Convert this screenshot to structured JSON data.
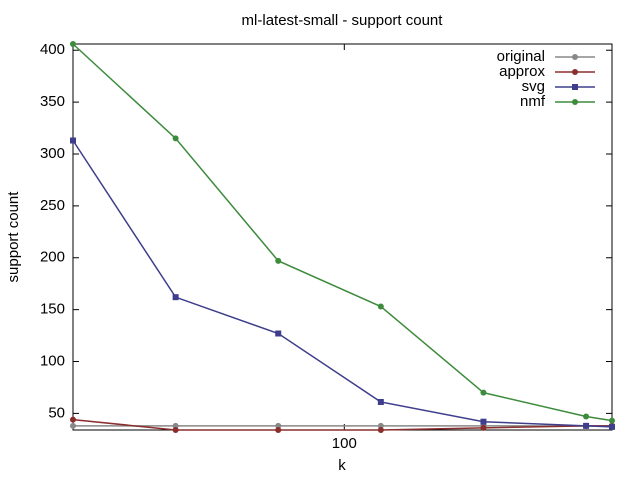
{
  "chart_data": {
    "type": "line",
    "title": "ml-latest-small - support count",
    "xlabel": "k",
    "ylabel": "support count",
    "x": [
      16,
      32,
      64,
      128,
      256,
      512,
      610
    ],
    "xscale": "log",
    "xlim": [
      16,
      610
    ],
    "xticks": [
      100
    ],
    "ylim": [
      34,
      406
    ],
    "yticks": [
      50,
      100,
      150,
      200,
      250,
      300,
      350,
      400
    ],
    "legend": "top-right",
    "series": [
      {
        "name": "original",
        "color": "#888888",
        "marker": "circle",
        "values": [
          38,
          38,
          38,
          38,
          38,
          38,
          38
        ]
      },
      {
        "name": "approx",
        "color": "#8b2e2e",
        "marker": "circle",
        "values": [
          44,
          34,
          34,
          34,
          36,
          38,
          38
        ]
      },
      {
        "name": "svg",
        "color": "#3e3e8c",
        "marker": "square",
        "values": [
          313,
          162,
          127,
          61,
          42,
          38,
          37
        ]
      },
      {
        "name": "nmf",
        "color": "#3d8b3d",
        "marker": "circle",
        "values": [
          406,
          315,
          197,
          153,
          70,
          47,
          43
        ]
      }
    ]
  }
}
